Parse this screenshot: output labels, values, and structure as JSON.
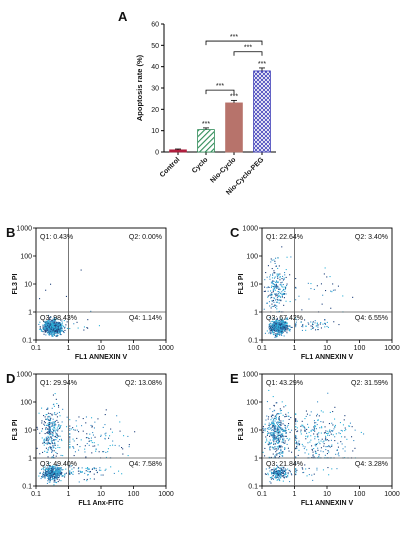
{
  "chart_data": [
    {
      "panel": "A",
      "type": "bar",
      "ylabel": "Apoptosis rate (%)",
      "ylim": [
        0,
        60
      ],
      "yticks": [
        0,
        10,
        20,
        30,
        40,
        50,
        60
      ],
      "categories": [
        "Control",
        "Cyclo",
        "Nio-Cyclo",
        "Nio-Cyclo-PEG"
      ],
      "values": [
        1.0,
        10.5,
        23.0,
        38.0
      ],
      "errors": [
        0.4,
        0.8,
        1.2,
        1.4
      ],
      "colors": [
        "#b01f3e",
        "#2e8b57",
        "#b7736b",
        "#3b3bb8"
      ],
      "patterns": [
        "solid",
        "hatch",
        "solid",
        "crosshatch"
      ],
      "bar_labels": [
        "",
        "***",
        "***",
        "***"
      ],
      "comparisons": [
        {
          "from": 1,
          "to": 2,
          "label": "***"
        },
        {
          "from": 2,
          "to": 3,
          "label": "***"
        },
        {
          "from": 1,
          "to": 3,
          "label": "***"
        }
      ]
    },
    {
      "panel": "B",
      "type": "scatter",
      "xlabel": "FL1  ANNEXIN V",
      "ylabel": "FL3  PI",
      "xscale": "log",
      "yscale": "log",
      "xlim": [
        0.1,
        1000
      ],
      "ylim": [
        0.1,
        1000
      ],
      "xticks": [
        "0.1",
        "1",
        "10",
        "100",
        "1000"
      ],
      "yticks": [
        "0.1",
        "1",
        "10",
        "100",
        "1000"
      ],
      "gate": [
        1,
        1
      ],
      "quadrants": {
        "Q1": "Q1: 0.43%",
        "Q2": "Q2: 0.00%",
        "Q3": "Q3: 98.43%",
        "Q4": "Q4: 1.14%"
      },
      "percent": [
        0.43,
        0.0,
        98.43,
        1.14
      ]
    },
    {
      "panel": "C",
      "type": "scatter",
      "xlabel": "FL1  ANNEXIN V",
      "ylabel": "FL3  PI",
      "xscale": "log",
      "yscale": "log",
      "xlim": [
        0.1,
        1000
      ],
      "ylim": [
        0.1,
        1000
      ],
      "xticks": [
        "0.1",
        "1",
        "10",
        "100",
        "1000"
      ],
      "yticks": [
        "0.1",
        "1",
        "10",
        "100",
        "1000"
      ],
      "gate": [
        1,
        1
      ],
      "quadrants": {
        "Q1": "Q1: 22.64%",
        "Q2": "Q2: 3.40%",
        "Q3": "Q3: 67.42%",
        "Q4": "Q4: 6.55%"
      },
      "percent": [
        22.64,
        3.4,
        67.42,
        6.55
      ]
    },
    {
      "panel": "D",
      "type": "scatter",
      "xlabel": "FL1  Anx-FITC",
      "ylabel": "FL3  PI",
      "xscale": "log",
      "yscale": "log",
      "xlim": [
        0.1,
        1000
      ],
      "ylim": [
        0.1,
        1000
      ],
      "xticks": [
        "0.1",
        "1",
        "10",
        "100",
        "1000"
      ],
      "yticks": [
        "0.1",
        "1",
        "10",
        "100",
        "1000"
      ],
      "gate": [
        1,
        1
      ],
      "quadrants": {
        "Q1": "Q1: 29.94%",
        "Q2": "Q2: 13.08%",
        "Q3": "Q3: 49.40%",
        "Q4": "Q4: 7.58%"
      },
      "percent": [
        29.94,
        13.08,
        49.4,
        7.58
      ]
    },
    {
      "panel": "E",
      "type": "scatter",
      "xlabel": "FL1  ANNEXIN V",
      "ylabel": "FL3  PI",
      "xscale": "log",
      "yscale": "log",
      "xlim": [
        0.1,
        1000
      ],
      "ylim": [
        0.1,
        1000
      ],
      "xticks": [
        "0.1",
        "1",
        "10",
        "100",
        "1000"
      ],
      "yticks": [
        "0.1",
        "1",
        "10",
        "100",
        "1000"
      ],
      "gate": [
        1,
        1
      ],
      "quadrants": {
        "Q1": "Q1: 43.29%",
        "Q2": "Q2: 31.59%",
        "Q3": "Q3: 21.84%",
        "Q4": "Q4: 3.28%"
      },
      "percent": [
        43.29,
        31.59,
        21.84,
        3.28
      ]
    }
  ],
  "colors": {
    "dot": "#3a8fc7",
    "dot_dense": "#2bb0d8",
    "dot_dark": "#1d3f7a",
    "axis": "#000000"
  }
}
